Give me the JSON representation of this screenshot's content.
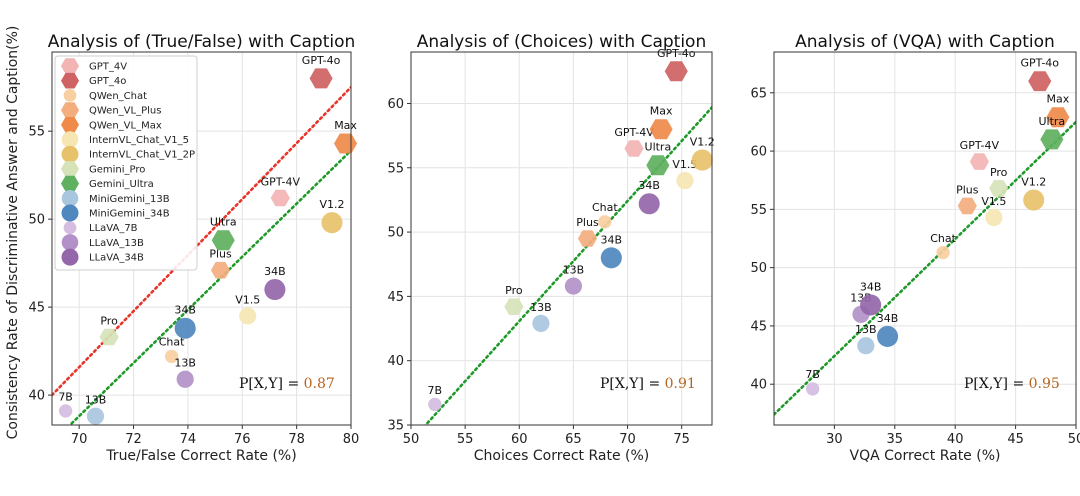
{
  "colors": {
    "GPT_4V": "#f3b4b4",
    "GPT_4o": "#cf6262",
    "QWen_Chat": "#f8cfa0",
    "QWen_VL_Plus": "#f3ad7f",
    "QWen_VL_Max": "#ef8a4a",
    "InternVL_Chat_V1_5": "#f6e6b3",
    "InternVL_Chat_V1_2P": "#e8c26b",
    "Gemini_Pro": "#d6e3b8",
    "Gemini_Ultra": "#5fb05f",
    "MiniGemini_13B": "#a9c6df",
    "MiniGemini_34B": "#4f88bf",
    "LLaVA_7B": "#d4bde1",
    "LLaVA_13B": "#b391c8",
    "LLaVA_34B": "#9466aa",
    "red_line": "#e8352a",
    "green_line": "#1f9a2a",
    "corr_value": "#b5651d"
  },
  "legend": {
    "entries": [
      {
        "key": "GPT_4V",
        "label": "GPT_4V",
        "size": 11
      },
      {
        "key": "GPT_4o",
        "label": "GPT_4o",
        "size": 14
      },
      {
        "key": "QWen_Chat",
        "label": "QWen_Chat",
        "size": 8
      },
      {
        "key": "QWen_VL_Plus",
        "label": "QWen_VL_Plus",
        "size": 11
      },
      {
        "key": "QWen_VL_Max",
        "label": "QWen_VL_Max",
        "size": 14
      },
      {
        "key": "InternVL_Chat_V1_5",
        "label": "InternVL_Chat_V1_5",
        "size": 11
      },
      {
        "key": "InternVL_Chat_V1_2P",
        "label": "InternVL_Chat_V1_2P",
        "size": 14
      },
      {
        "key": "Gemini_Pro",
        "label": "Gemini_Pro",
        "size": 11
      },
      {
        "key": "Gemini_Ultra",
        "label": "Gemini_Ultra",
        "size": 14
      },
      {
        "key": "MiniGemini_13B",
        "label": "MiniGemini_13B",
        "size": 11
      },
      {
        "key": "MiniGemini_34B",
        "label": "MiniGemini_34B",
        "size": 14
      },
      {
        "key": "LLaVA_7B",
        "label": "LLaVA_7B",
        "size": 8
      },
      {
        "key": "LLaVA_13B",
        "label": "LLaVA_13B",
        "size": 11
      },
      {
        "key": "LLaVA_34B",
        "label": "LLaVA_34B",
        "size": 14
      }
    ]
  },
  "chart_data": [
    {
      "type": "scatter",
      "title": "Analysis of (True/False) with Caption",
      "xlabel": "True/False Correct Rate (%)",
      "ylabel": "Consistency Rate of Discriminative Answer and Caption(%)",
      "xlim": [
        69,
        80
      ],
      "ylim": [
        38.3,
        59.5
      ],
      "xticks": [
        70,
        72,
        74,
        76,
        78,
        80
      ],
      "yticks": [
        40,
        45,
        50,
        55
      ],
      "grid": true,
      "legend": "upper-left",
      "corr_prefix": "P[X,Y] = ",
      "corr_value": "0.87",
      "red_line": [
        [
          69,
          40.0
        ],
        [
          80,
          57.5
        ]
      ],
      "green_line": [
        [
          69,
          37.3
        ],
        [
          80,
          53.9
        ]
      ],
      "points": [
        {
          "key": "GPT_4V",
          "label": "GPT-4V",
          "x": 77.4,
          "y": 51.2,
          "shape": "hexagon"
        },
        {
          "key": "GPT_4o",
          "label": "GPT-4o",
          "x": 78.9,
          "y": 58.0,
          "shape": "hexagon"
        },
        {
          "key": "QWen_Chat",
          "label": "Chat",
          "x": 73.4,
          "y": 42.2,
          "shape": "circle"
        },
        {
          "key": "QWen_VL_Plus",
          "label": "Plus",
          "x": 75.2,
          "y": 47.1,
          "shape": "hexagon"
        },
        {
          "key": "QWen_VL_Max",
          "label": "Max",
          "x": 79.8,
          "y": 54.3,
          "shape": "hexagon"
        },
        {
          "key": "InternVL_Chat_V1_5",
          "label": "V1.5",
          "x": 76.2,
          "y": 44.5,
          "shape": "circle"
        },
        {
          "key": "InternVL_Chat_V1_2P",
          "label": "V1.2",
          "x": 79.3,
          "y": 49.8,
          "shape": "circle"
        },
        {
          "key": "Gemini_Pro",
          "label": "Pro",
          "x": 71.1,
          "y": 43.3,
          "shape": "hexagon"
        },
        {
          "key": "Gemini_Ultra",
          "label": "Ultra",
          "x": 75.3,
          "y": 48.8,
          "shape": "hexagon"
        },
        {
          "key": "MiniGemini_13B",
          "label": "13B",
          "x": 70.6,
          "y": 38.8,
          "shape": "circle"
        },
        {
          "key": "MiniGemini_34B",
          "label": "34B",
          "x": 73.9,
          "y": 43.8,
          "shape": "circle"
        },
        {
          "key": "LLaVA_7B",
          "label": "7B",
          "x": 69.5,
          "y": 39.1,
          "shape": "circle"
        },
        {
          "key": "LLaVA_13B",
          "label": "13B",
          "x": 73.9,
          "y": 40.9,
          "shape": "circle"
        },
        {
          "key": "LLaVA_34B",
          "label": "34B",
          "x": 77.2,
          "y": 46.0,
          "shape": "circle"
        }
      ]
    },
    {
      "type": "scatter",
      "title": "Analysis of (Choices) with Caption",
      "xlabel": "Choices Correct Rate (%)",
      "ylabel": "",
      "xlim": [
        50,
        77.8
      ],
      "ylim": [
        35,
        64
      ],
      "xticks": [
        50,
        55,
        60,
        65,
        70,
        75
      ],
      "yticks": [
        35,
        40,
        45,
        50,
        55,
        60
      ],
      "grid": true,
      "corr_prefix": "P[X,Y] = ",
      "corr_value": "0.91",
      "green_line": [
        [
          50.5,
          34.2
        ],
        [
          77.8,
          59.7
        ]
      ],
      "points": [
        {
          "key": "GPT_4V",
          "label": "GPT-4V",
          "x": 70.6,
          "y": 56.5,
          "shape": "hexagon"
        },
        {
          "key": "GPT_4o",
          "label": "GPT-4o",
          "x": 74.5,
          "y": 62.5,
          "shape": "hexagon"
        },
        {
          "key": "QWen_Chat",
          "label": "Chat",
          "x": 67.9,
          "y": 50.8,
          "shape": "circle"
        },
        {
          "key": "QWen_VL_Plus",
          "label": "Plus",
          "x": 66.3,
          "y": 49.5,
          "shape": "hexagon"
        },
        {
          "key": "QWen_VL_Max",
          "label": "Max",
          "x": 73.1,
          "y": 58.0,
          "shape": "hexagon"
        },
        {
          "key": "InternVL_Chat_V1_5",
          "label": "V1.5",
          "x": 75.3,
          "y": 54.0,
          "shape": "circle"
        },
        {
          "key": "InternVL_Chat_V1_2P",
          "label": "V1.2",
          "x": 76.9,
          "y": 55.6,
          "shape": "circle"
        },
        {
          "key": "Gemini_Pro",
          "label": "Pro",
          "x": 59.5,
          "y": 44.2,
          "shape": "hexagon"
        },
        {
          "key": "Gemini_Ultra",
          "label": "Ultra",
          "x": 72.8,
          "y": 55.2,
          "shape": "hexagon"
        },
        {
          "key": "MiniGemini_13B",
          "label": "13B",
          "x": 62.0,
          "y": 42.9,
          "shape": "circle"
        },
        {
          "key": "MiniGemini_34B",
          "label": "34B",
          "x": 68.5,
          "y": 48.0,
          "shape": "circle"
        },
        {
          "key": "LLaVA_7B",
          "label": "7B",
          "x": 52.2,
          "y": 36.6,
          "shape": "circle"
        },
        {
          "key": "LLaVA_13B",
          "label": "13B",
          "x": 65.0,
          "y": 45.8,
          "shape": "circle"
        },
        {
          "key": "LLaVA_34B",
          "label": "34B",
          "x": 72.0,
          "y": 52.2,
          "shape": "circle"
        }
      ]
    },
    {
      "type": "scatter",
      "title": "Analysis of (VQA) with Caption",
      "xlabel": "VQA Correct Rate (%)",
      "ylabel": "",
      "xlim": [
        25,
        50
      ],
      "ylim": [
        36.5,
        68.5
      ],
      "xticks": [
        30,
        35,
        40,
        45,
        50
      ],
      "yticks": [
        40,
        45,
        50,
        55,
        60,
        65
      ],
      "grid": true,
      "corr_prefix": "P[X,Y] = ",
      "corr_value": "0.95",
      "green_line": [
        [
          25,
          37.4
        ],
        [
          50,
          62.5
        ]
      ],
      "points": [
        {
          "key": "GPT_4V",
          "label": "GPT-4V",
          "x": 42.0,
          "y": 59.1,
          "shape": "hexagon"
        },
        {
          "key": "GPT_4o",
          "label": "GPT-4o",
          "x": 47.0,
          "y": 66.0,
          "shape": "hexagon"
        },
        {
          "key": "QWen_Chat",
          "label": "Chat",
          "x": 39.0,
          "y": 51.3,
          "shape": "circle"
        },
        {
          "key": "QWen_VL_Plus",
          "label": "Plus",
          "x": 41.0,
          "y": 55.3,
          "shape": "hexagon"
        },
        {
          "key": "QWen_VL_Max",
          "label": "Max",
          "x": 48.5,
          "y": 62.9,
          "shape": "hexagon"
        },
        {
          "key": "InternVL_Chat_V1_5",
          "label": "V1.5",
          "x": 43.2,
          "y": 54.3,
          "shape": "circle"
        },
        {
          "key": "InternVL_Chat_V1_2P",
          "label": "V1.2",
          "x": 46.5,
          "y": 55.8,
          "shape": "circle"
        },
        {
          "key": "Gemini_Pro",
          "label": "Pro",
          "x": 43.6,
          "y": 56.8,
          "shape": "hexagon"
        },
        {
          "key": "Gemini_Ultra",
          "label": "Ultra",
          "x": 48.0,
          "y": 61.0,
          "shape": "hexagon"
        },
        {
          "key": "MiniGemini_13B",
          "label": "13B",
          "x": 32.6,
          "y": 43.3,
          "shape": "circle"
        },
        {
          "key": "MiniGemini_34B",
          "label": "34B",
          "x": 34.4,
          "y": 44.1,
          "shape": "circle"
        },
        {
          "key": "LLaVA_7B",
          "label": "7B",
          "x": 28.2,
          "y": 39.6,
          "shape": "circle"
        },
        {
          "key": "LLaVA_13B",
          "label": "13B",
          "x": 32.2,
          "y": 46.0,
          "shape": "circle"
        },
        {
          "key": "LLaVA_34B",
          "label": "34B",
          "x": 33.0,
          "y": 46.8,
          "shape": "circle"
        }
      ]
    }
  ]
}
